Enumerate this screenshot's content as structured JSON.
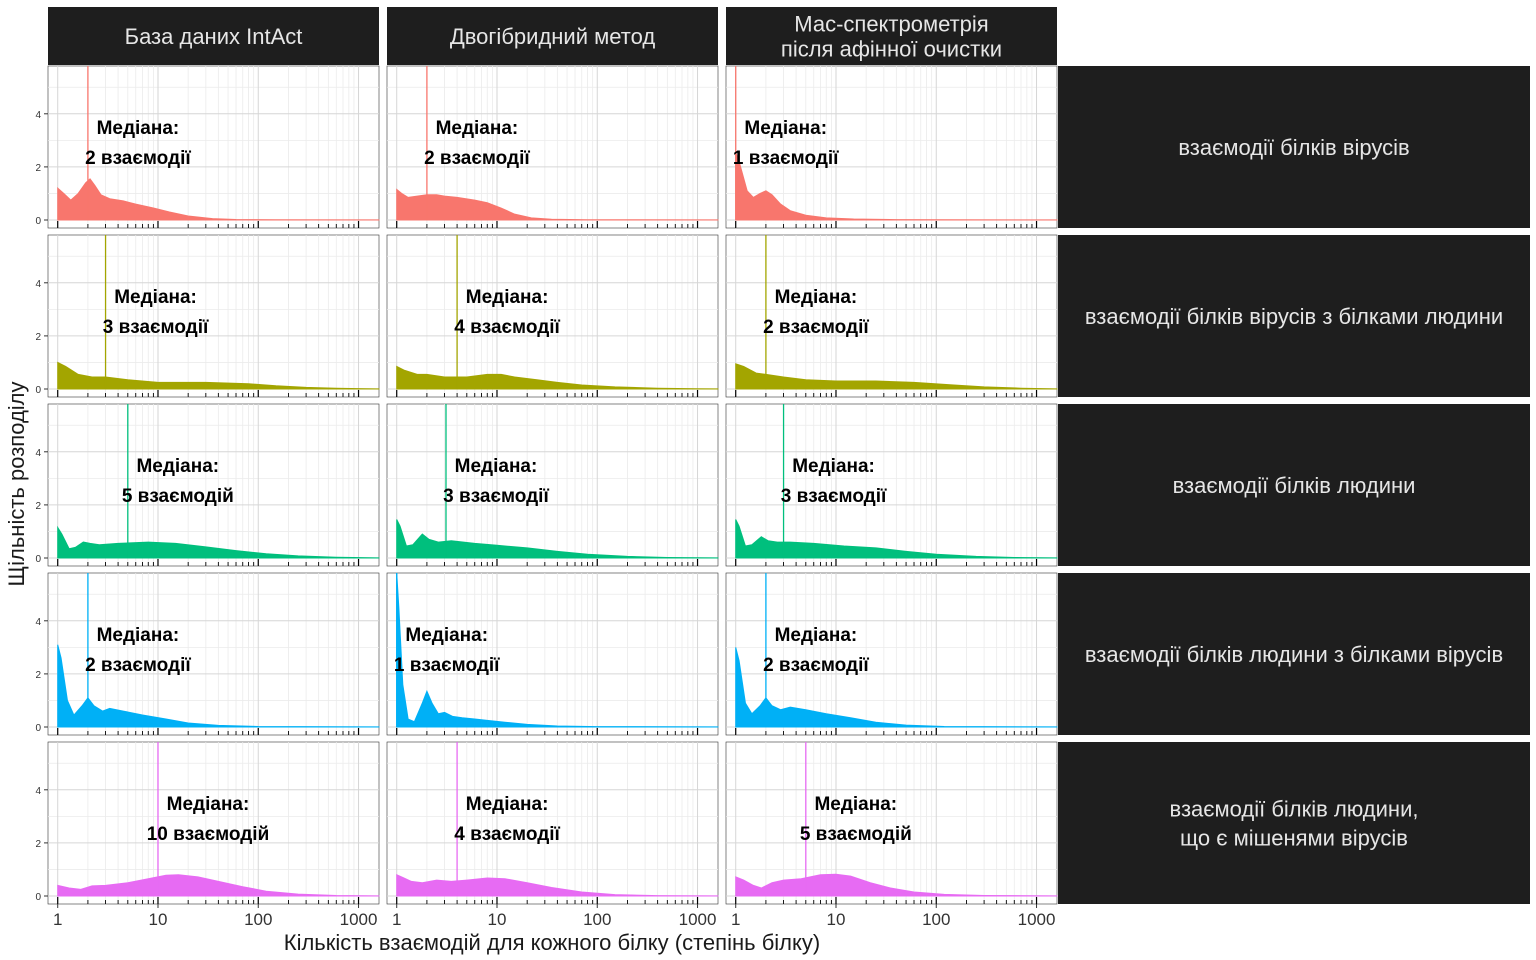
{
  "chart_data": {
    "type": "area",
    "subtype": "faceted density plot with median lines",
    "xlabel": "Кількість взаємодій для кожного білку (степінь білку)",
    "ylabel": "Щільність розподілу",
    "x_scale": "log10",
    "x_ticks": [
      "1",
      "10",
      "100",
      "1000"
    ],
    "y_ticks": [
      "0",
      "2",
      "4"
    ],
    "ylim": [
      0,
      5.8
    ],
    "xlim": [
      0.8,
      1600
    ],
    "grid": true,
    "column_facets": [
      {
        "label": "База даних IntAct"
      },
      {
        "label": "Двогібридний метод"
      },
      {
        "label_lines": [
          "Мас-спектрометрія",
          "після афінної очистки"
        ]
      }
    ],
    "row_facets": [
      {
        "label_lines": [
          "взаємодії білків вірусів"
        ],
        "color": "#F8766D"
      },
      {
        "label_lines": [
          "взаємодії білків вірусів з білками людини"
        ],
        "color": "#A3A500"
      },
      {
        "label_lines": [
          "взаємодії білків людини"
        ],
        "color": "#00BF7D"
      },
      {
        "label_lines": [
          "взаємодії білків людини з білками вірусів"
        ],
        "color": "#00B0F6"
      },
      {
        "label_lines": [
          "взаємодії білків людини,",
          "що є мішенями вірусів"
        ],
        "color": "#E76BF3"
      }
    ],
    "panels": [
      [
        {
          "median": 2,
          "annotation": [
            "Медіана:",
            "2 взаємодії"
          ],
          "density": [
            [
              1,
              1.2
            ],
            [
              1.15,
              1.0
            ],
            [
              1.35,
              0.75
            ],
            [
              1.6,
              1.0
            ],
            [
              1.9,
              1.4
            ],
            [
              2.1,
              1.55
            ],
            [
              2.35,
              1.3
            ],
            [
              2.7,
              0.95
            ],
            [
              3.3,
              0.8
            ],
            [
              4.5,
              0.72
            ],
            [
              6,
              0.6
            ],
            [
              9,
              0.45
            ],
            [
              13,
              0.3
            ],
            [
              20,
              0.15
            ],
            [
              35,
              0.05
            ],
            [
              60,
              0.02
            ],
            [
              150,
              0.01
            ],
            [
              1600,
              0.005
            ]
          ]
        },
        {
          "median": 2,
          "annotation": [
            "Медіана:",
            "2 взаємодії"
          ],
          "density": [
            [
              1,
              1.15
            ],
            [
              1.12,
              1.0
            ],
            [
              1.3,
              0.85
            ],
            [
              1.6,
              0.9
            ],
            [
              2,
              0.95
            ],
            [
              2.5,
              0.95
            ],
            [
              3,
              0.9
            ],
            [
              4,
              0.85
            ],
            [
              6,
              0.75
            ],
            [
              8,
              0.65
            ],
            [
              11,
              0.45
            ],
            [
              15,
              0.22
            ],
            [
              22,
              0.08
            ],
            [
              35,
              0.03
            ],
            [
              80,
              0.01
            ],
            [
              1600,
              0.005
            ]
          ]
        },
        {
          "median": 1,
          "annotation": [
            "Медіана:",
            "1 взаємодії"
          ],
          "density": [
            [
              1,
              2.55
            ],
            [
              1.1,
              2.1
            ],
            [
              1.3,
              1.1
            ],
            [
              1.5,
              0.85
            ],
            [
              1.75,
              1.0
            ],
            [
              2,
              1.1
            ],
            [
              2.3,
              0.95
            ],
            [
              2.8,
              0.6
            ],
            [
              3.5,
              0.35
            ],
            [
              5,
              0.18
            ],
            [
              8,
              0.08
            ],
            [
              15,
              0.04
            ],
            [
              40,
              0.015
            ],
            [
              150,
              0.008
            ],
            [
              1600,
              0.005
            ]
          ]
        }
      ],
      [
        {
          "median": 3,
          "annotation": [
            "Медіана:",
            "3 взаємодії"
          ],
          "density": [
            [
              1,
              1.0
            ],
            [
              1.2,
              0.85
            ],
            [
              1.6,
              0.55
            ],
            [
              2.2,
              0.45
            ],
            [
              3,
              0.45
            ],
            [
              5,
              0.35
            ],
            [
              10,
              0.25
            ],
            [
              30,
              0.25
            ],
            [
              80,
              0.2
            ],
            [
              150,
              0.12
            ],
            [
              300,
              0.06
            ],
            [
              600,
              0.03
            ],
            [
              1000,
              0.015
            ],
            [
              1600,
              0.005
            ]
          ]
        },
        {
          "median": 4,
          "annotation": [
            "Медіана:",
            "4 взаємодії"
          ],
          "density": [
            [
              1,
              0.85
            ],
            [
              1.2,
              0.7
            ],
            [
              1.6,
              0.55
            ],
            [
              2,
              0.55
            ],
            [
              3,
              0.45
            ],
            [
              5,
              0.45
            ],
            [
              8,
              0.55
            ],
            [
              11,
              0.55
            ],
            [
              15,
              0.45
            ],
            [
              25,
              0.35
            ],
            [
              40,
              0.25
            ],
            [
              70,
              0.15
            ],
            [
              150,
              0.08
            ],
            [
              400,
              0.03
            ],
            [
              1000,
              0.01
            ],
            [
              1600,
              0.005
            ]
          ]
        },
        {
          "median": 2,
          "annotation": [
            "Медіана:",
            "2 взаємодії"
          ],
          "density": [
            [
              1,
              0.95
            ],
            [
              1.2,
              0.85
            ],
            [
              1.6,
              0.6
            ],
            [
              2,
              0.55
            ],
            [
              3,
              0.45
            ],
            [
              5,
              0.35
            ],
            [
              10,
              0.3
            ],
            [
              25,
              0.3
            ],
            [
              60,
              0.25
            ],
            [
              150,
              0.15
            ],
            [
              300,
              0.08
            ],
            [
              700,
              0.03
            ],
            [
              1600,
              0.005
            ]
          ]
        }
      ],
      [
        {
          "median": 5,
          "annotation": [
            "Медіана:",
            "5 взаємодій"
          ],
          "density": [
            [
              1,
              1.15
            ],
            [
              1.1,
              0.9
            ],
            [
              1.3,
              0.35
            ],
            [
              1.5,
              0.4
            ],
            [
              1.8,
              0.6
            ],
            [
              2.1,
              0.55
            ],
            [
              2.6,
              0.5
            ],
            [
              4,
              0.55
            ],
            [
              8,
              0.6
            ],
            [
              15,
              0.55
            ],
            [
              30,
              0.42
            ],
            [
              60,
              0.28
            ],
            [
              120,
              0.16
            ],
            [
              250,
              0.08
            ],
            [
              600,
              0.03
            ],
            [
              1600,
              0.005
            ]
          ]
        },
        {
          "median": 3.1,
          "annotation": [
            "Медіана:",
            "3 взаємодії"
          ],
          "density": [
            [
              1,
              1.45
            ],
            [
              1.08,
              1.2
            ],
            [
              1.25,
              0.45
            ],
            [
              1.45,
              0.5
            ],
            [
              1.8,
              0.9
            ],
            [
              2.1,
              0.7
            ],
            [
              2.6,
              0.6
            ],
            [
              3.5,
              0.65
            ],
            [
              6,
              0.55
            ],
            [
              10,
              0.48
            ],
            [
              20,
              0.38
            ],
            [
              40,
              0.25
            ],
            [
              80,
              0.14
            ],
            [
              200,
              0.06
            ],
            [
              500,
              0.02
            ],
            [
              1600,
              0.005
            ]
          ]
        },
        {
          "median": 3,
          "annotation": [
            "Медіана:",
            "3 взаємодії"
          ],
          "density": [
            [
              1,
              1.45
            ],
            [
              1.08,
              1.2
            ],
            [
              1.25,
              0.45
            ],
            [
              1.45,
              0.5
            ],
            [
              1.8,
              0.8
            ],
            [
              2.1,
              0.65
            ],
            [
              2.6,
              0.6
            ],
            [
              3.5,
              0.6
            ],
            [
              6,
              0.55
            ],
            [
              12,
              0.45
            ],
            [
              25,
              0.38
            ],
            [
              50,
              0.25
            ],
            [
              100,
              0.14
            ],
            [
              250,
              0.06
            ],
            [
              600,
              0.02
            ],
            [
              1600,
              0.005
            ]
          ]
        }
      ],
      [
        {
          "median": 2,
          "annotation": [
            "Медіана:",
            "2 взаємодії"
          ],
          "density": [
            [
              1,
              3.1
            ],
            [
              1.08,
              2.6
            ],
            [
              1.25,
              1.0
            ],
            [
              1.45,
              0.45
            ],
            [
              1.75,
              0.8
            ],
            [
              2,
              1.1
            ],
            [
              2.3,
              0.8
            ],
            [
              2.8,
              0.6
            ],
            [
              3.3,
              0.7
            ],
            [
              4.5,
              0.6
            ],
            [
              7,
              0.45
            ],
            [
              12,
              0.3
            ],
            [
              20,
              0.15
            ],
            [
              40,
              0.06
            ],
            [
              100,
              0.02
            ],
            [
              1600,
              0.005
            ]
          ]
        },
        {
          "median": 1,
          "annotation": [
            "Медіана:",
            "1 взаємодії"
          ],
          "density": [
            [
              1,
              5.8
            ],
            [
              1.05,
              4.5
            ],
            [
              1.15,
              1.6
            ],
            [
              1.3,
              0.3
            ],
            [
              1.5,
              0.2
            ],
            [
              1.8,
              0.9
            ],
            [
              2,
              1.35
            ],
            [
              2.25,
              0.9
            ],
            [
              2.6,
              0.5
            ],
            [
              3,
              0.55
            ],
            [
              3.6,
              0.4
            ],
            [
              4.5,
              0.35
            ],
            [
              6,
              0.3
            ],
            [
              8,
              0.25
            ],
            [
              12,
              0.18
            ],
            [
              20,
              0.1
            ],
            [
              40,
              0.04
            ],
            [
              100,
              0.015
            ],
            [
              1600,
              0.005
            ]
          ]
        },
        {
          "median": 2,
          "annotation": [
            "Медіана:",
            "2 взаємодії"
          ],
          "density": [
            [
              1,
              3.0
            ],
            [
              1.08,
              2.5
            ],
            [
              1.25,
              0.9
            ],
            [
              1.45,
              0.5
            ],
            [
              1.75,
              0.8
            ],
            [
              2,
              1.1
            ],
            [
              2.3,
              0.8
            ],
            [
              2.8,
              0.65
            ],
            [
              3.5,
              0.75
            ],
            [
              5,
              0.65
            ],
            [
              8,
              0.5
            ],
            [
              14,
              0.35
            ],
            [
              25,
              0.18
            ],
            [
              50,
              0.07
            ],
            [
              120,
              0.02
            ],
            [
              1600,
              0.005
            ]
          ]
        }
      ],
      [
        {
          "median": 10,
          "annotation": [
            "Медіана:",
            "10 взаємодій"
          ],
          "density": [
            [
              1,
              0.4
            ],
            [
              1.3,
              0.3
            ],
            [
              1.7,
              0.25
            ],
            [
              2.2,
              0.38
            ],
            [
              3,
              0.4
            ],
            [
              5,
              0.5
            ],
            [
              8,
              0.65
            ],
            [
              12,
              0.78
            ],
            [
              16,
              0.8
            ],
            [
              25,
              0.72
            ],
            [
              40,
              0.55
            ],
            [
              70,
              0.35
            ],
            [
              120,
              0.18
            ],
            [
              250,
              0.07
            ],
            [
              600,
              0.02
            ],
            [
              1600,
              0.005
            ]
          ]
        },
        {
          "median": 4,
          "annotation": [
            "Медіана:",
            "4 взаємодії"
          ],
          "density": [
            [
              1,
              0.8
            ],
            [
              1.15,
              0.7
            ],
            [
              1.4,
              0.55
            ],
            [
              1.8,
              0.5
            ],
            [
              2.5,
              0.6
            ],
            [
              3.5,
              0.55
            ],
            [
              5,
              0.6
            ],
            [
              8,
              0.68
            ],
            [
              12,
              0.65
            ],
            [
              20,
              0.5
            ],
            [
              35,
              0.32
            ],
            [
              70,
              0.15
            ],
            [
              150,
              0.05
            ],
            [
              400,
              0.015
            ],
            [
              1600,
              0.005
            ]
          ]
        },
        {
          "median": 5,
          "annotation": [
            "Медіана:",
            "5 взаємодій"
          ],
          "density": [
            [
              1,
              0.72
            ],
            [
              1.2,
              0.6
            ],
            [
              1.5,
              0.4
            ],
            [
              1.8,
              0.3
            ],
            [
              2.3,
              0.5
            ],
            [
              3,
              0.6
            ],
            [
              4.5,
              0.65
            ],
            [
              7,
              0.8
            ],
            [
              10,
              0.82
            ],
            [
              14,
              0.75
            ],
            [
              22,
              0.5
            ],
            [
              35,
              0.3
            ],
            [
              60,
              0.15
            ],
            [
              120,
              0.06
            ],
            [
              300,
              0.02
            ],
            [
              1600,
              0.005
            ]
          ]
        }
      ]
    ]
  }
}
